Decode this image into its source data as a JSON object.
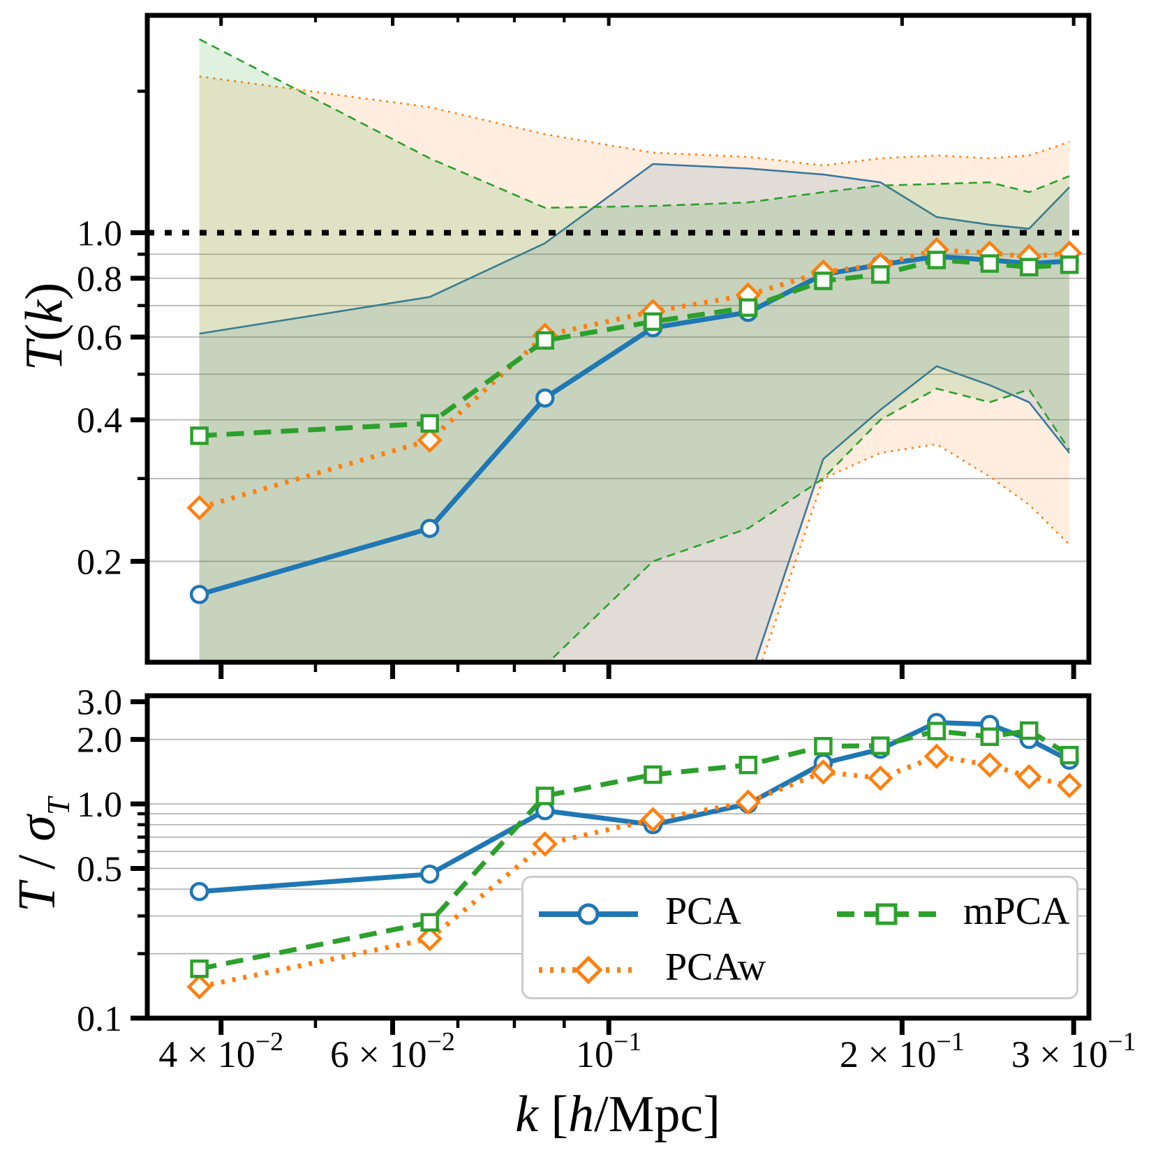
{
  "figure": {
    "background": "#ffffff",
    "labels": {
      "y_top": {
        "T": "T",
        "open": "(",
        "k": "k",
        "close": ")"
      },
      "y_bottom": {
        "T": "T",
        "sep": " / ",
        "sigma": "σ",
        "sub": "T"
      },
      "x": {
        "k": "k",
        "open": " [",
        "h": "h",
        "close": "/Mpc]"
      }
    },
    "legend": {
      "border_color": "#cccccc",
      "entries": [
        {
          "label": "PCA",
          "series": "PCA"
        },
        {
          "label": "PCAw",
          "series": "PCAw"
        },
        {
          "label": "mPCA",
          "series": "mPCA"
        }
      ]
    }
  },
  "chart_data": [
    {
      "type": "line",
      "panel": "top",
      "title": "",
      "xlabel": "",
      "ylabel": "T(k)",
      "xscale": "log",
      "yscale": "log",
      "xlim": [
        0.0336,
        0.311
      ],
      "ylim": [
        0.122,
        2.9
      ],
      "grid": true,
      "gridlines_y": [
        0.9,
        0.8,
        0.7,
        0.6,
        0.5,
        0.4,
        0.3,
        0.2
      ],
      "yticks_major": [
        {
          "v": 1.0,
          "label": "1.0"
        },
        {
          "v": 0.8,
          "label": "0.8"
        },
        {
          "v": 0.6,
          "label": "0.6"
        },
        {
          "v": 0.4,
          "label": "0.4"
        },
        {
          "v": 0.2,
          "label": "0.2"
        }
      ],
      "yticks_minor": [
        2.0,
        0.9,
        0.7,
        0.5,
        0.3
      ],
      "xticks_major": [
        {
          "v": 0.04,
          "parts": [
            "4 × 10",
            "−2"
          ]
        },
        {
          "v": 0.06,
          "parts": [
            "6 × 10",
            "−2"
          ]
        },
        {
          "v": 0.1,
          "parts": [
            "10",
            "−1"
          ]
        },
        {
          "v": 0.2,
          "parts": [
            "2 × 10",
            "−1"
          ]
        },
        {
          "v": 0.3,
          "parts": [
            "3 × 10",
            "−1"
          ]
        }
      ],
      "xticks_minor": [
        0.05,
        0.07,
        0.08,
        0.09
      ],
      "show_xtick_labels": false,
      "ref_line": {
        "y": 1.0,
        "color": "#000000",
        "style": "dotted"
      },
      "x": [
        0.038,
        0.0655,
        0.086,
        0.111,
        0.139,
        0.166,
        0.19,
        0.217,
        0.246,
        0.27,
        0.297
      ],
      "series": [
        {
          "name": "PCA",
          "color": "#1f77b4",
          "style": "solid",
          "marker": "circle",
          "values": [
            0.17,
            0.235,
            0.445,
            0.628,
            0.677,
            0.815,
            0.855,
            0.89,
            0.875,
            0.86,
            0.87
          ]
        },
        {
          "name": "PCAw",
          "color": "#ff7f0e",
          "style": "dotted",
          "marker": "diamond",
          "values": [
            0.26,
            0.362,
            0.605,
            0.68,
            0.737,
            0.825,
            0.855,
            0.92,
            0.905,
            0.89,
            0.905
          ]
        },
        {
          "name": "mPCA",
          "color": "#2ca02c",
          "style": "dashed",
          "marker": "square",
          "values": [
            0.37,
            0.393,
            0.59,
            0.647,
            0.693,
            0.79,
            0.815,
            0.875,
            0.86,
            0.845,
            0.855
          ]
        }
      ],
      "bands": [
        {
          "name": "PCA ±σ",
          "color": "#1f77b4",
          "style": "solid",
          "fill_opacity": 0.15,
          "upper": [
            0.61,
            0.73,
            0.95,
            1.4,
            1.37,
            1.33,
            1.28,
            1.08,
            1.04,
            1.02,
            1.25
          ],
          "lower": [
            0.1,
            0.1,
            0.1,
            0.1,
            0.11,
            0.33,
            0.42,
            0.52,
            0.474,
            0.436,
            0.34
          ]
        },
        {
          "name": "PCAw ±σ",
          "color": "#ff7f0e",
          "style": "dotted",
          "fill_opacity": 0.13,
          "upper": [
            2.15,
            1.85,
            1.62,
            1.48,
            1.45,
            1.39,
            1.44,
            1.46,
            1.44,
            1.46,
            1.56
          ],
          "lower": [
            0.1,
            0.1,
            0.1,
            0.1,
            0.1,
            0.3,
            0.34,
            0.355,
            0.303,
            0.264,
            0.217
          ]
        },
        {
          "name": "mPCA ±σ",
          "color": "#2ca02c",
          "style": "dashed",
          "fill_opacity": 0.15,
          "upper": [
            2.58,
            1.44,
            1.13,
            1.14,
            1.16,
            1.22,
            1.26,
            1.27,
            1.28,
            1.22,
            1.32
          ],
          "lower": [
            0.1,
            0.1,
            0.12,
            0.2,
            0.235,
            0.3,
            0.4,
            0.466,
            0.436,
            0.464,
            0.345
          ]
        }
      ]
    },
    {
      "type": "line",
      "panel": "bottom",
      "title": "",
      "xlabel": "k [h/Mpc]",
      "ylabel": "T / σT",
      "xscale": "log",
      "yscale": "log",
      "xlim": [
        0.0336,
        0.311
      ],
      "ylim": [
        0.1,
        3.2
      ],
      "grid": true,
      "gridlines_y": [
        2.0,
        1.0,
        0.9,
        0.8,
        0.7,
        0.6,
        0.5,
        0.4,
        0.3,
        0.2
      ],
      "yticks_major": [
        {
          "v": 3.0,
          "label": "3.0"
        },
        {
          "v": 2.0,
          "label": "2.0"
        },
        {
          "v": 1.0,
          "label": "1.0"
        },
        {
          "v": 0.5,
          "label": "0.5"
        },
        {
          "v": 0.1,
          "label": "0.1"
        }
      ],
      "yticks_minor": [
        0.9,
        0.8,
        0.7,
        0.6,
        0.4,
        0.3,
        0.2
      ],
      "xticks_major": [
        {
          "v": 0.04,
          "parts": [
            "4 × 10",
            "−2"
          ]
        },
        {
          "v": 0.06,
          "parts": [
            "6 × 10",
            "−2"
          ]
        },
        {
          "v": 0.1,
          "parts": [
            "10",
            "−1"
          ]
        },
        {
          "v": 0.2,
          "parts": [
            "2 × 10",
            "−1"
          ]
        },
        {
          "v": 0.3,
          "parts": [
            "3 × 10",
            "−1"
          ]
        }
      ],
      "xticks_minor": [
        0.05,
        0.07,
        0.08,
        0.09
      ],
      "show_xtick_labels": true,
      "x": [
        0.038,
        0.0655,
        0.086,
        0.111,
        0.139,
        0.166,
        0.19,
        0.217,
        0.246,
        0.27,
        0.297
      ],
      "series": [
        {
          "name": "PCA",
          "color": "#1f77b4",
          "style": "solid",
          "marker": "circle",
          "values": [
            0.39,
            0.47,
            0.93,
            0.8,
            1.0,
            1.55,
            1.8,
            2.4,
            2.35,
            2.0,
            1.6
          ]
        },
        {
          "name": "PCAw",
          "color": "#ff7f0e",
          "style": "dotted",
          "marker": "diamond",
          "values": [
            0.14,
            0.235,
            0.65,
            0.845,
            1.02,
            1.41,
            1.32,
            1.67,
            1.52,
            1.34,
            1.22
          ]
        },
        {
          "name": "mPCA",
          "color": "#2ca02c",
          "style": "dashed",
          "marker": "square",
          "values": [
            0.17,
            0.28,
            1.09,
            1.37,
            1.52,
            1.86,
            1.87,
            2.19,
            2.06,
            2.2,
            1.69
          ]
        }
      ]
    }
  ]
}
